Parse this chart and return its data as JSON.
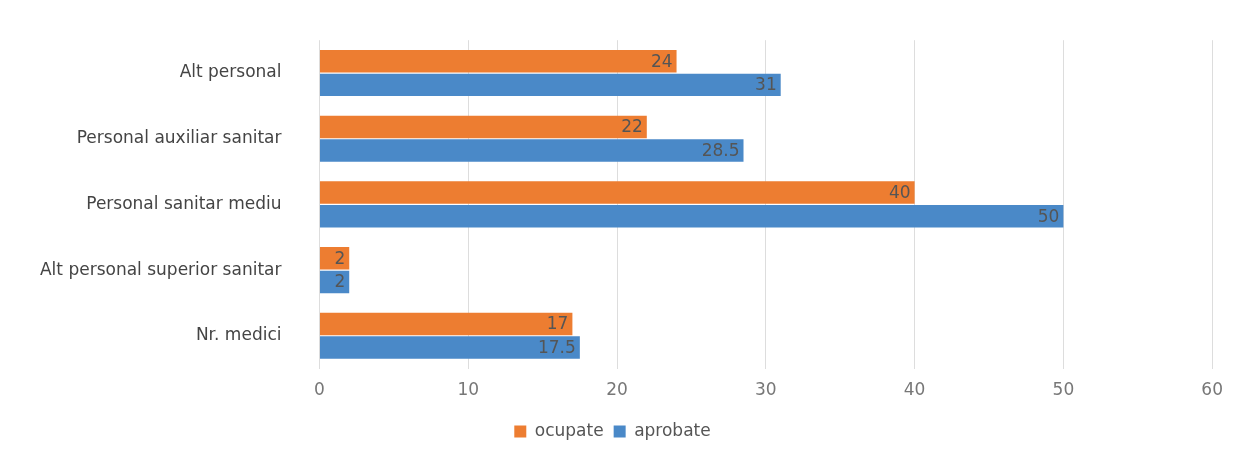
{
  "chart_data": {
    "type": "bar",
    "orientation": "horizontal",
    "categories": [
      "Alt personal",
      "Personal auxiliar sanitar",
      "Personal sanitar mediu",
      "Alt personal superior sanitar",
      "Nr. medici"
    ],
    "series": [
      {
        "name": "ocupate",
        "color": "#ed7d31",
        "values": [
          24,
          22,
          40,
          2,
          17
        ]
      },
      {
        "name": "aprobate",
        "color": "#4a89c8",
        "values": [
          31,
          28.5,
          50,
          2,
          17.5
        ]
      }
    ],
    "xlim": [
      0,
      60
    ],
    "xticks": [
      0,
      10,
      20,
      30,
      40,
      50,
      60
    ],
    "grid": "x",
    "legend": "bottom",
    "data_labels": true
  }
}
